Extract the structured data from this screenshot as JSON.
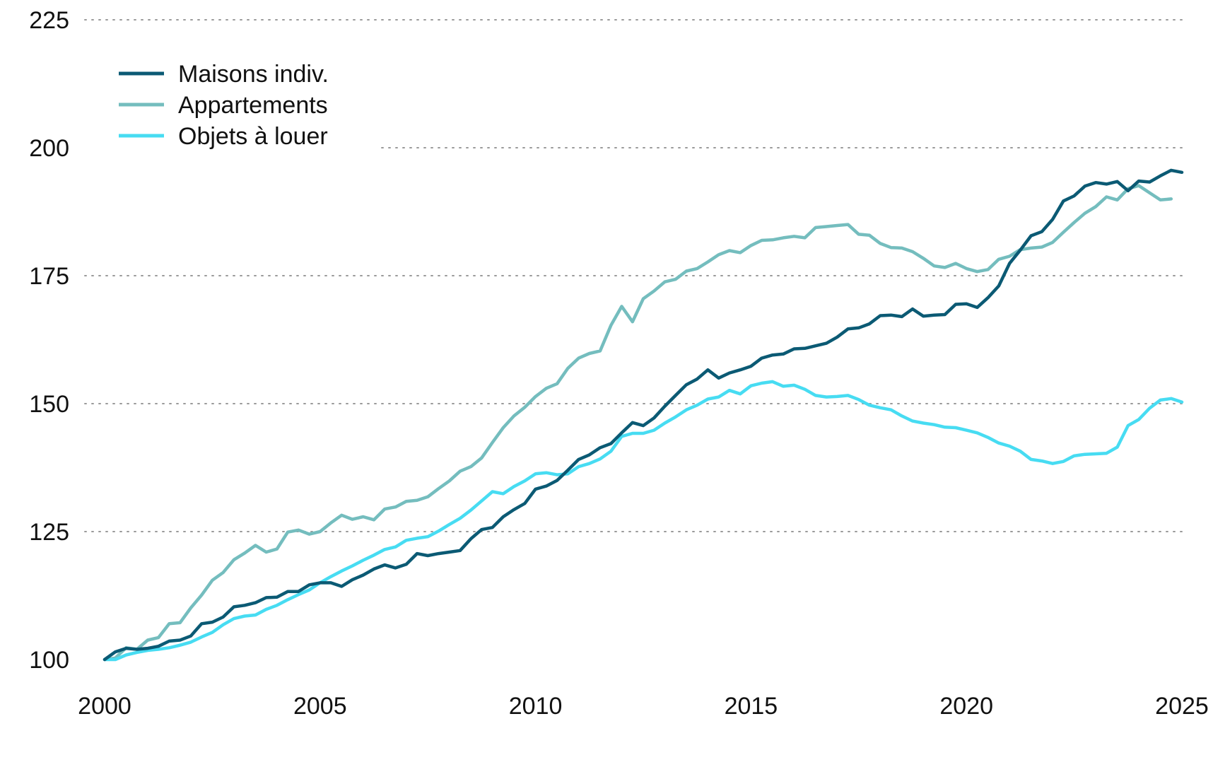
{
  "chart_data": {
    "type": "line",
    "title": "",
    "xlabel": "",
    "ylabel": "",
    "xlim": [
      2000,
      2025
    ],
    "ylim": [
      100,
      225
    ],
    "x_ticks": [
      "2000",
      "2005",
      "2010",
      "2015",
      "2020",
      "2025"
    ],
    "y_ticks": [
      "100",
      "125",
      "150",
      "175",
      "200",
      "225"
    ],
    "grid": "horizontal-dotted",
    "legend_position": "top-left",
    "series": [
      {
        "name": "Maisons indiv.",
        "color": "#0b5a74",
        "points": [
          [
            2000.0,
            100.0
          ],
          [
            2000.25,
            101.5
          ],
          [
            2000.5,
            102.2
          ],
          [
            2000.75,
            102.0
          ],
          [
            2001.0,
            102.2
          ],
          [
            2001.25,
            102.6
          ],
          [
            2001.5,
            103.6
          ],
          [
            2001.75,
            103.8
          ],
          [
            2002.0,
            104.6
          ],
          [
            2002.25,
            107.0
          ],
          [
            2002.5,
            107.3
          ],
          [
            2002.75,
            108.3
          ],
          [
            2003.0,
            110.3
          ],
          [
            2003.25,
            110.6
          ],
          [
            2003.5,
            111.1
          ],
          [
            2003.75,
            112.1
          ],
          [
            2004.0,
            112.2
          ],
          [
            2004.25,
            113.3
          ],
          [
            2004.5,
            113.3
          ],
          [
            2004.75,
            114.6
          ],
          [
            2005.0,
            115.0
          ],
          [
            2005.25,
            115.0
          ],
          [
            2005.5,
            114.3
          ],
          [
            2005.75,
            115.6
          ],
          [
            2006.0,
            116.5
          ],
          [
            2006.25,
            117.7
          ],
          [
            2006.5,
            118.5
          ],
          [
            2006.75,
            117.9
          ],
          [
            2007.0,
            118.6
          ],
          [
            2007.25,
            120.7
          ],
          [
            2007.5,
            120.3
          ],
          [
            2007.75,
            120.7
          ],
          [
            2008.0,
            121.0
          ],
          [
            2008.25,
            121.3
          ],
          [
            2008.5,
            123.6
          ],
          [
            2008.75,
            125.4
          ],
          [
            2009.0,
            125.8
          ],
          [
            2009.25,
            127.9
          ],
          [
            2009.5,
            129.3
          ],
          [
            2009.75,
            130.5
          ],
          [
            2010.0,
            133.3
          ],
          [
            2010.25,
            133.9
          ],
          [
            2010.5,
            135.0
          ],
          [
            2010.75,
            137.0
          ],
          [
            2011.0,
            139.1
          ],
          [
            2011.25,
            140.0
          ],
          [
            2011.5,
            141.4
          ],
          [
            2011.75,
            142.2
          ],
          [
            2012.0,
            144.3
          ],
          [
            2012.25,
            146.3
          ],
          [
            2012.5,
            145.7
          ],
          [
            2012.75,
            147.2
          ],
          [
            2013.0,
            149.5
          ],
          [
            2013.25,
            151.6
          ],
          [
            2013.5,
            153.7
          ],
          [
            2013.75,
            154.8
          ],
          [
            2014.0,
            156.6
          ],
          [
            2014.25,
            155.0
          ],
          [
            2014.5,
            156.0
          ],
          [
            2014.75,
            156.6
          ],
          [
            2015.0,
            157.3
          ],
          [
            2015.25,
            158.9
          ],
          [
            2015.5,
            159.5
          ],
          [
            2015.75,
            159.7
          ],
          [
            2016.0,
            160.7
          ],
          [
            2016.25,
            160.8
          ],
          [
            2016.5,
            161.3
          ],
          [
            2016.75,
            161.8
          ],
          [
            2017.0,
            163.0
          ],
          [
            2017.25,
            164.6
          ],
          [
            2017.5,
            164.8
          ],
          [
            2017.75,
            165.6
          ],
          [
            2018.0,
            167.2
          ],
          [
            2018.25,
            167.3
          ],
          [
            2018.5,
            167.0
          ],
          [
            2018.75,
            168.5
          ],
          [
            2019.0,
            167.1
          ],
          [
            2019.25,
            167.3
          ],
          [
            2019.5,
            167.4
          ],
          [
            2019.75,
            169.4
          ],
          [
            2020.0,
            169.5
          ],
          [
            2020.25,
            168.8
          ],
          [
            2020.5,
            170.7
          ],
          [
            2020.75,
            173.0
          ],
          [
            2021.0,
            177.4
          ],
          [
            2021.25,
            180.0
          ],
          [
            2021.5,
            182.8
          ],
          [
            2021.75,
            183.6
          ],
          [
            2022.0,
            186.0
          ],
          [
            2022.25,
            189.6
          ],
          [
            2022.5,
            190.6
          ],
          [
            2022.75,
            192.5
          ],
          [
            2023.0,
            193.2
          ],
          [
            2023.25,
            192.9
          ],
          [
            2023.5,
            193.4
          ],
          [
            2023.75,
            191.6
          ],
          [
            2024.0,
            193.5
          ],
          [
            2024.25,
            193.3
          ],
          [
            2024.5,
            194.5
          ],
          [
            2024.75,
            195.6
          ],
          [
            2025.0,
            195.2
          ]
        ]
      },
      {
        "name": "Appartements",
        "color": "#74bdbe",
        "points": [
          [
            2000.0,
            100.0
          ],
          [
            2000.25,
            100.3
          ],
          [
            2000.5,
            102.3
          ],
          [
            2000.75,
            102.0
          ],
          [
            2001.0,
            103.8
          ],
          [
            2001.25,
            104.3
          ],
          [
            2001.5,
            107.0
          ],
          [
            2001.75,
            107.2
          ],
          [
            2002.0,
            110.1
          ],
          [
            2002.25,
            112.6
          ],
          [
            2002.5,
            115.5
          ],
          [
            2002.75,
            117.0
          ],
          [
            2003.0,
            119.5
          ],
          [
            2003.25,
            120.8
          ],
          [
            2003.5,
            122.3
          ],
          [
            2003.75,
            121.0
          ],
          [
            2004.0,
            121.6
          ],
          [
            2004.25,
            124.9
          ],
          [
            2004.5,
            125.3
          ],
          [
            2004.75,
            124.5
          ],
          [
            2005.0,
            125.0
          ],
          [
            2005.25,
            126.7
          ],
          [
            2005.5,
            128.2
          ],
          [
            2005.75,
            127.4
          ],
          [
            2006.0,
            127.9
          ],
          [
            2006.25,
            127.3
          ],
          [
            2006.5,
            129.4
          ],
          [
            2006.75,
            129.8
          ],
          [
            2007.0,
            130.9
          ],
          [
            2007.25,
            131.1
          ],
          [
            2007.5,
            131.8
          ],
          [
            2007.75,
            133.4
          ],
          [
            2008.0,
            134.9
          ],
          [
            2008.25,
            136.8
          ],
          [
            2008.5,
            137.7
          ],
          [
            2008.75,
            139.4
          ],
          [
            2009.0,
            142.4
          ],
          [
            2009.25,
            145.3
          ],
          [
            2009.5,
            147.6
          ],
          [
            2009.75,
            149.3
          ],
          [
            2010.0,
            151.4
          ],
          [
            2010.25,
            153.0
          ],
          [
            2010.5,
            153.9
          ],
          [
            2010.75,
            156.9
          ],
          [
            2011.0,
            158.9
          ],
          [
            2011.25,
            159.8
          ],
          [
            2011.5,
            160.3
          ],
          [
            2011.75,
            165.3
          ],
          [
            2012.0,
            169.0
          ],
          [
            2012.25,
            166.0
          ],
          [
            2012.5,
            170.5
          ],
          [
            2012.75,
            172.0
          ],
          [
            2013.0,
            173.8
          ],
          [
            2013.25,
            174.3
          ],
          [
            2013.5,
            175.9
          ],
          [
            2013.75,
            176.4
          ],
          [
            2014.0,
            177.7
          ],
          [
            2014.25,
            179.1
          ],
          [
            2014.5,
            179.9
          ],
          [
            2014.75,
            179.5
          ],
          [
            2015.0,
            180.9
          ],
          [
            2015.25,
            181.9
          ],
          [
            2015.5,
            182.0
          ],
          [
            2015.75,
            182.4
          ],
          [
            2016.0,
            182.7
          ],
          [
            2016.25,
            182.4
          ],
          [
            2016.5,
            184.4
          ],
          [
            2016.75,
            184.6
          ],
          [
            2017.0,
            184.8
          ],
          [
            2017.25,
            185.0
          ],
          [
            2017.5,
            183.1
          ],
          [
            2017.75,
            182.9
          ],
          [
            2018.0,
            181.3
          ],
          [
            2018.25,
            180.5
          ],
          [
            2018.5,
            180.4
          ],
          [
            2018.75,
            179.7
          ],
          [
            2019.0,
            178.4
          ],
          [
            2019.25,
            176.9
          ],
          [
            2019.5,
            176.6
          ],
          [
            2019.75,
            177.4
          ],
          [
            2020.0,
            176.4
          ],
          [
            2020.25,
            175.8
          ],
          [
            2020.5,
            176.2
          ],
          [
            2020.75,
            178.2
          ],
          [
            2021.0,
            178.8
          ],
          [
            2021.25,
            180.1
          ],
          [
            2021.5,
            180.4
          ],
          [
            2021.75,
            180.6
          ],
          [
            2022.0,
            181.5
          ],
          [
            2022.25,
            183.5
          ],
          [
            2022.5,
            185.4
          ],
          [
            2022.75,
            187.2
          ],
          [
            2023.0,
            188.5
          ],
          [
            2023.25,
            190.4
          ],
          [
            2023.5,
            189.8
          ],
          [
            2023.75,
            192.0
          ],
          [
            2024.0,
            192.6
          ],
          [
            2024.25,
            191.2
          ],
          [
            2024.5,
            189.8
          ],
          [
            2024.75,
            190.0
          ]
        ]
      },
      {
        "name": "Objets à louer",
        "color": "#47dcf2",
        "points": [
          [
            2000.0,
            100.0
          ],
          [
            2000.25,
            100.0
          ],
          [
            2000.5,
            100.9
          ],
          [
            2000.75,
            101.4
          ],
          [
            2001.0,
            101.8
          ],
          [
            2001.25,
            102.0
          ],
          [
            2001.5,
            102.3
          ],
          [
            2001.75,
            102.8
          ],
          [
            2002.0,
            103.4
          ],
          [
            2002.25,
            104.4
          ],
          [
            2002.5,
            105.3
          ],
          [
            2002.75,
            106.8
          ],
          [
            2003.0,
            108.0
          ],
          [
            2003.25,
            108.5
          ],
          [
            2003.5,
            108.7
          ],
          [
            2003.75,
            109.8
          ],
          [
            2004.0,
            110.6
          ],
          [
            2004.25,
            111.7
          ],
          [
            2004.5,
            112.7
          ],
          [
            2004.75,
            113.6
          ],
          [
            2005.0,
            115.0
          ],
          [
            2005.25,
            116.2
          ],
          [
            2005.5,
            117.3
          ],
          [
            2005.75,
            118.3
          ],
          [
            2006.0,
            119.4
          ],
          [
            2006.25,
            120.4
          ],
          [
            2006.5,
            121.5
          ],
          [
            2006.75,
            122.0
          ],
          [
            2007.0,
            123.3
          ],
          [
            2007.25,
            123.7
          ],
          [
            2007.5,
            124.0
          ],
          [
            2007.75,
            125.1
          ],
          [
            2008.0,
            126.4
          ],
          [
            2008.25,
            127.6
          ],
          [
            2008.5,
            129.2
          ],
          [
            2008.75,
            131.0
          ],
          [
            2009.0,
            132.8
          ],
          [
            2009.25,
            132.4
          ],
          [
            2009.5,
            133.8
          ],
          [
            2009.75,
            134.9
          ],
          [
            2010.0,
            136.3
          ],
          [
            2010.25,
            136.5
          ],
          [
            2010.5,
            136.1
          ],
          [
            2010.75,
            136.3
          ],
          [
            2011.0,
            137.7
          ],
          [
            2011.25,
            138.3
          ],
          [
            2011.5,
            139.2
          ],
          [
            2011.75,
            140.7
          ],
          [
            2012.0,
            143.6
          ],
          [
            2012.25,
            144.2
          ],
          [
            2012.5,
            144.2
          ],
          [
            2012.75,
            144.8
          ],
          [
            2013.0,
            146.2
          ],
          [
            2013.25,
            147.4
          ],
          [
            2013.5,
            148.8
          ],
          [
            2013.75,
            149.7
          ],
          [
            2014.0,
            150.9
          ],
          [
            2014.25,
            151.3
          ],
          [
            2014.5,
            152.6
          ],
          [
            2014.75,
            151.9
          ],
          [
            2015.0,
            153.5
          ],
          [
            2015.25,
            154.0
          ],
          [
            2015.5,
            154.3
          ],
          [
            2015.75,
            153.4
          ],
          [
            2016.0,
            153.6
          ],
          [
            2016.25,
            152.8
          ],
          [
            2016.5,
            151.6
          ],
          [
            2016.75,
            151.3
          ],
          [
            2017.0,
            151.4
          ],
          [
            2017.25,
            151.6
          ],
          [
            2017.5,
            150.8
          ],
          [
            2017.75,
            149.7
          ],
          [
            2018.0,
            149.2
          ],
          [
            2018.25,
            148.8
          ],
          [
            2018.5,
            147.6
          ],
          [
            2018.75,
            146.6
          ],
          [
            2019.0,
            146.2
          ],
          [
            2019.25,
            145.9
          ],
          [
            2019.5,
            145.4
          ],
          [
            2019.75,
            145.3
          ],
          [
            2020.0,
            144.8
          ],
          [
            2020.25,
            144.3
          ],
          [
            2020.5,
            143.4
          ],
          [
            2020.75,
            142.3
          ],
          [
            2021.0,
            141.7
          ],
          [
            2021.25,
            140.7
          ],
          [
            2021.5,
            139.1
          ],
          [
            2021.75,
            138.8
          ],
          [
            2022.0,
            138.3
          ],
          [
            2022.25,
            138.7
          ],
          [
            2022.5,
            139.8
          ],
          [
            2022.75,
            140.1
          ],
          [
            2023.0,
            140.2
          ],
          [
            2023.25,
            140.3
          ],
          [
            2023.5,
            141.5
          ],
          [
            2023.75,
            145.7
          ],
          [
            2024.0,
            146.9
          ],
          [
            2024.25,
            149.1
          ],
          [
            2024.5,
            150.7
          ],
          [
            2024.75,
            151.0
          ],
          [
            2025.0,
            150.3
          ]
        ]
      }
    ]
  }
}
